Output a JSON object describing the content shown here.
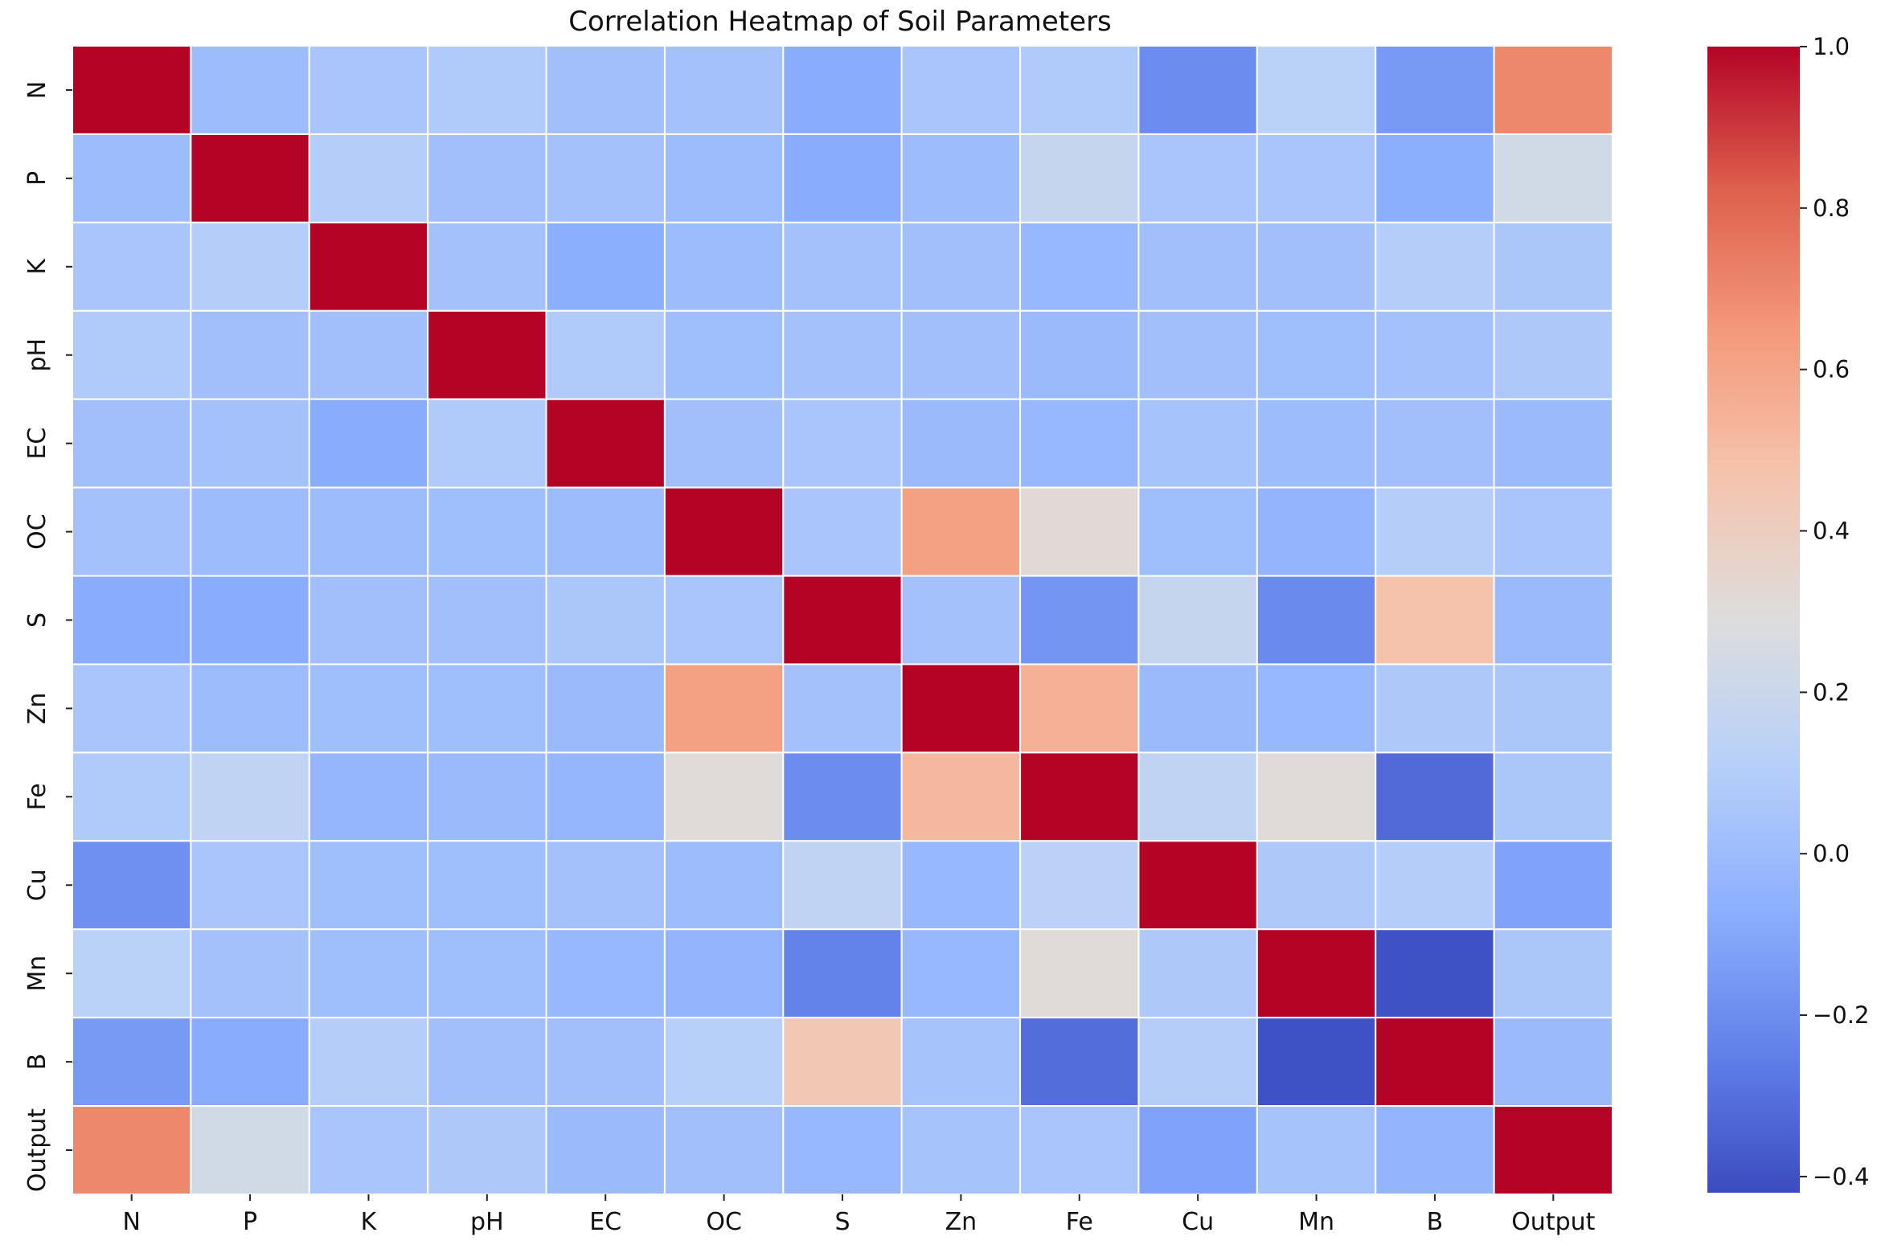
{
  "chart_data": {
    "type": "heatmap",
    "title": "Correlation Heatmap of Soil Parameters",
    "xlabel": "",
    "ylabel": "",
    "labels": [
      "N",
      "P",
      "K",
      "pH",
      "EC",
      "OC",
      "S",
      "Zn",
      "Fe",
      "Cu",
      "Mn",
      "B",
      "Output"
    ],
    "matrix": [
      [
        1.0,
        0.0,
        0.05,
        0.08,
        0.02,
        0.03,
        -0.08,
        0.05,
        0.08,
        -0.2,
        0.12,
        -0.15,
        0.7
      ],
      [
        0.0,
        1.0,
        0.1,
        0.02,
        0.03,
        0.0,
        -0.08,
        0.0,
        0.18,
        0.05,
        0.05,
        -0.07,
        0.23
      ],
      [
        0.05,
        0.1,
        1.0,
        0.03,
        -0.07,
        0.0,
        0.03,
        0.02,
        -0.02,
        0.02,
        0.02,
        0.1,
        0.06
      ],
      [
        0.08,
        0.02,
        0.02,
        1.0,
        0.08,
        0.01,
        0.03,
        0.02,
        -0.01,
        0.02,
        0.01,
        0.03,
        0.07
      ],
      [
        0.02,
        0.03,
        -0.08,
        0.08,
        1.0,
        0.02,
        0.05,
        -0.01,
        -0.02,
        0.04,
        0.0,
        0.02,
        -0.01
      ],
      [
        0.03,
        0.0,
        0.0,
        0.01,
        0.0,
        1.0,
        0.05,
        0.62,
        0.32,
        0.01,
        -0.04,
        0.1,
        0.05
      ],
      [
        -0.08,
        -0.08,
        0.02,
        0.02,
        0.06,
        0.05,
        1.0,
        0.03,
        -0.17,
        0.18,
        -0.21,
        0.47,
        -0.01
      ],
      [
        0.05,
        0.0,
        0.01,
        0.01,
        -0.01,
        0.62,
        0.03,
        1.0,
        0.55,
        -0.01,
        -0.02,
        0.07,
        0.06
      ],
      [
        0.08,
        0.15,
        -0.03,
        -0.01,
        -0.03,
        0.31,
        -0.2,
        0.52,
        1.0,
        0.15,
        0.31,
        -0.32,
        0.06
      ],
      [
        -0.19,
        0.05,
        0.01,
        0.01,
        0.03,
        0.0,
        0.15,
        -0.02,
        0.13,
        1.0,
        0.07,
        0.1,
        -0.12
      ],
      [
        0.12,
        0.03,
        0.01,
        0.01,
        -0.02,
        -0.04,
        -0.24,
        -0.02,
        0.31,
        0.07,
        1.0,
        -0.4,
        0.06
      ],
      [
        -0.15,
        -0.08,
        0.1,
        0.02,
        0.02,
        0.11,
        0.44,
        0.04,
        -0.31,
        0.1,
        -0.4,
        1.0,
        -0.01
      ],
      [
        0.7,
        0.23,
        0.05,
        0.07,
        -0.01,
        0.02,
        -0.02,
        0.04,
        0.05,
        -0.12,
        0.04,
        -0.04,
        1.0
      ]
    ],
    "vmin": -0.42,
    "vmax": 1.0,
    "colormap": "coolwarm",
    "gridlines": true,
    "colorbar": {
      "ticks": [
        1.0,
        0.8,
        0.6,
        0.4,
        0.2,
        0.0,
        -0.2,
        -0.4
      ],
      "tick_labels": [
        "1.0",
        "0.8",
        "0.6",
        "0.4",
        "0.2",
        "0.0",
        "−0.2",
        "−0.4"
      ],
      "placement": "right"
    },
    "colors": {
      "low": "#3b4cc0",
      "mid": "#dddddd",
      "high": "#b40426",
      "cell_border": "#ffffff"
    }
  }
}
